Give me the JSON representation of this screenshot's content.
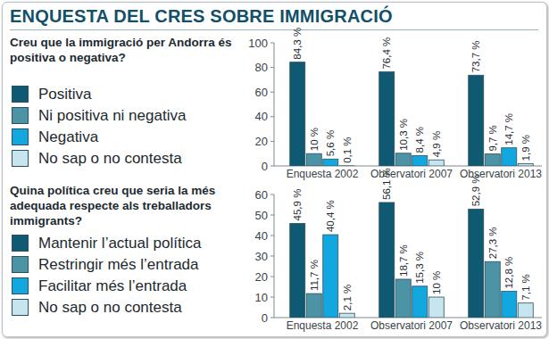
{
  "title": "ENQUESTA DEL CRES SOBRE IMMIGRACIÓ",
  "chart_data": [
    {
      "type": "bar",
      "title": "Creu que la immigració per Andorra és positiva o negativa?",
      "categories": [
        "Enquesta 2002",
        "Observatori 2007",
        "Observatori 2013"
      ],
      "series": [
        {
          "name": "Positiva",
          "color": "#0f5a72",
          "values": [
            84.3,
            76.4,
            73.7
          ],
          "value_labels": [
            "84,3 %",
            "76,4 %",
            "73,7 %"
          ]
        },
        {
          "name": "Ni positiva ni negativa",
          "color": "#4d93a6",
          "values": [
            10,
            10.3,
            9.7
          ],
          "value_labels": [
            "10 %",
            "10,3 %",
            "9,7 %"
          ]
        },
        {
          "name": "Negativa",
          "color": "#13a7df",
          "values": [
            5.6,
            8.4,
            14.7
          ],
          "value_labels": [
            "5,6 %",
            "8,4 %",
            "14,7 %"
          ]
        },
        {
          "name": "No sap o no contesta",
          "color": "#c7e5ee",
          "values": [
            0.1,
            4.9,
            1.9
          ],
          "value_labels": [
            "0,1 %",
            "4,9 %",
            "1,9 %"
          ]
        }
      ],
      "ylim": [
        0,
        100
      ],
      "yticks": [
        0,
        20,
        40,
        60,
        80,
        100
      ],
      "grid": false,
      "legend": "left",
      "data_labels": true
    },
    {
      "type": "bar",
      "title": "Quina política creu que seria la més adequada respecte als treballadors immigrants?",
      "categories": [
        "Enquesta 2002",
        "Observatori 2007",
        "Observatori 2013"
      ],
      "series": [
        {
          "name": "Mantenir l’actual política",
          "color": "#0f5a72",
          "values": [
            45.9,
            56.1,
            52.9
          ],
          "value_labels": [
            "45,9 %",
            "56,1 %",
            "52,9 %"
          ]
        },
        {
          "name": "Restringir més l’entrada",
          "color": "#4d93a6",
          "values": [
            11.7,
            18.7,
            27.3
          ],
          "value_labels": [
            "11,7 %",
            "18,7 %",
            "27,3 %"
          ]
        },
        {
          "name": "Facilitar més l’entrada",
          "color": "#13a7df",
          "values": [
            40.4,
            15.3,
            12.8
          ],
          "value_labels": [
            "40,4 %",
            "15,3 %",
            "12,8 %"
          ]
        },
        {
          "name": "No sap o no contesta",
          "color": "#c7e5ee",
          "values": [
            2.1,
            10,
            7.1
          ],
          "value_labels": [
            "2,1 %",
            "10 %",
            "7,1 %"
          ]
        }
      ],
      "ylim": [
        0,
        60
      ],
      "yticks": [
        0,
        10,
        20,
        30,
        40,
        50,
        60
      ],
      "grid": false,
      "legend": "left",
      "data_labels": true
    }
  ]
}
